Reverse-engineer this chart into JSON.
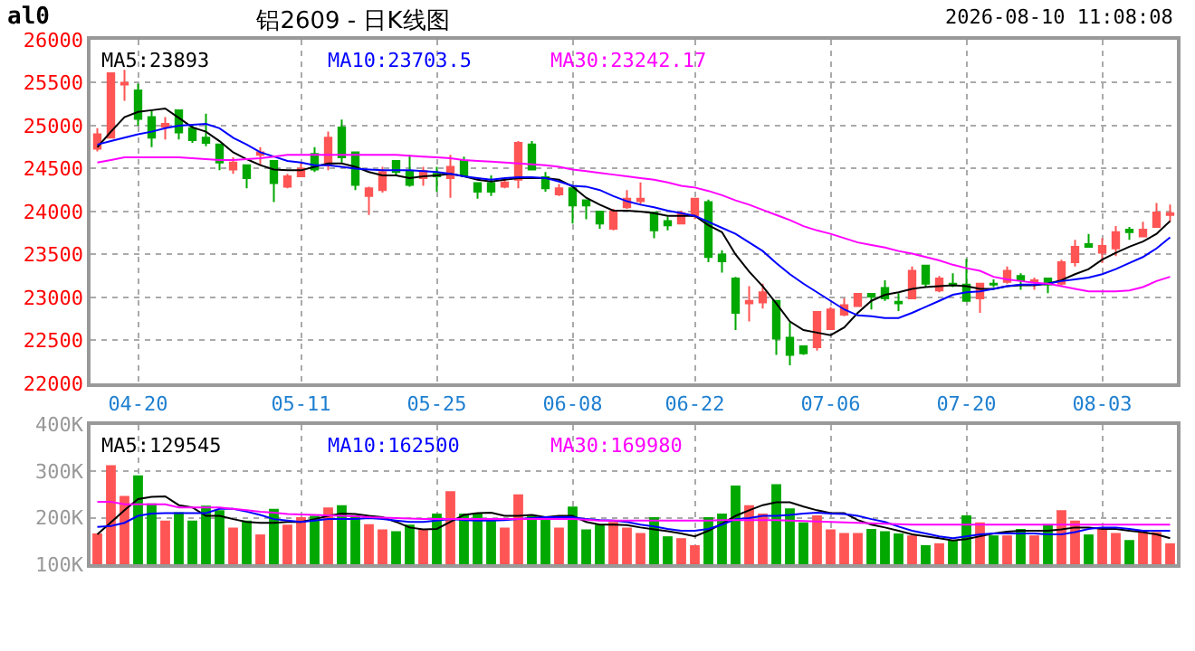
{
  "chart_data": [
    {
      "type": "candlestick",
      "title": "铝2609 - 日K线图",
      "annotations": [
        "al0",
        "2026-08-10 11:08:08"
      ],
      "categories": [
        null,
        null,
        null,
        "04-20",
        null,
        null,
        null,
        null,
        null,
        null,
        null,
        null,
        null,
        null,
        null,
        "05-11",
        null,
        null,
        null,
        null,
        null,
        null,
        null,
        null,
        null,
        "05-25",
        null,
        null,
        null,
        null,
        null,
        null,
        null,
        null,
        null,
        "06-08",
        null,
        null,
        null,
        null,
        null,
        null,
        null,
        null,
        "06-22",
        null,
        null,
        null,
        null,
        null,
        null,
        null,
        null,
        null,
        "07-06",
        null,
        null,
        null,
        null,
        null,
        null,
        null,
        null,
        null,
        "07-20",
        null,
        null,
        null,
        null,
        null,
        null,
        null,
        null,
        null,
        "08-03",
        null,
        null,
        null,
        null,
        null
      ],
      "ohlc": [
        [
          24730,
          24970,
          24700,
          24900
        ],
        [
          24860,
          25620,
          24850,
          25610
        ],
        [
          25480,
          25650,
          25290,
          25500
        ],
        [
          25410,
          25490,
          25000,
          25080
        ],
        [
          25100,
          25180,
          24750,
          24860
        ],
        [
          24990,
          25100,
          24840,
          25020
        ],
        [
          25180,
          25180,
          24840,
          24920
        ],
        [
          24970,
          25000,
          24800,
          24830
        ],
        [
          24860,
          25140,
          24760,
          24800
        ],
        [
          24780,
          24780,
          24480,
          24570
        ],
        [
          24490,
          24630,
          24440,
          24570
        ],
        [
          24540,
          24540,
          24270,
          24390
        ],
        [
          24660,
          24750,
          24540,
          24690
        ],
        [
          24590,
          24590,
          24110,
          24330
        ],
        [
          24290,
          24440,
          24270,
          24410
        ],
        [
          24410,
          24570,
          24400,
          24500
        ],
        [
          24670,
          24750,
          24460,
          24490
        ],
        [
          24540,
          24930,
          24480,
          24860
        ],
        [
          24980,
          25070,
          24570,
          24630
        ],
        [
          24690,
          24690,
          24250,
          24310
        ],
        [
          24180,
          24290,
          23960,
          24270
        ],
        [
          24250,
          24520,
          24220,
          24460
        ],
        [
          24590,
          24590,
          24410,
          24460
        ],
        [
          24470,
          24660,
          24290,
          24310
        ],
        [
          24390,
          24520,
          24300,
          24470
        ],
        [
          24440,
          24520,
          24230,
          24410
        ],
        [
          24390,
          24660,
          24160,
          24520
        ],
        [
          24590,
          24640,
          24400,
          24420
        ],
        [
          24330,
          24330,
          24150,
          24230
        ],
        [
          24330,
          24420,
          24180,
          24230
        ],
        [
          24290,
          24390,
          24270,
          24340
        ],
        [
          24370,
          24820,
          24270,
          24800
        ],
        [
          24780,
          24820,
          24480,
          24490
        ],
        [
          24400,
          24460,
          24230,
          24270
        ],
        [
          24200,
          24320,
          24180,
          24270
        ],
        [
          24270,
          24270,
          23860,
          24070
        ],
        [
          24130,
          24130,
          23910,
          24070
        ],
        [
          24000,
          24000,
          23800,
          23860
        ],
        [
          23800,
          24030,
          23780,
          24000
        ],
        [
          24050,
          24250,
          24030,
          24150
        ],
        [
          24120,
          24340,
          24080,
          24150
        ],
        [
          23990,
          23990,
          23690,
          23780
        ],
        [
          23890,
          23940,
          23780,
          23840
        ],
        [
          23860,
          24010,
          23860,
          23980
        ],
        [
          23950,
          24160,
          23910,
          24150
        ],
        [
          24110,
          24140,
          23410,
          23470
        ],
        [
          23500,
          23550,
          23290,
          23420
        ],
        [
          23220,
          23240,
          22620,
          22820
        ],
        [
          22930,
          23130,
          22720,
          22960
        ],
        [
          22940,
          23160,
          22870,
          23060
        ],
        [
          22960,
          22960,
          22330,
          22520
        ],
        [
          22530,
          22710,
          22210,
          22330
        ],
        [
          22430,
          22430,
          22330,
          22350
        ],
        [
          22420,
          22840,
          22380,
          22830
        ],
        [
          22630,
          22890,
          22620,
          22860
        ],
        [
          22800,
          22990,
          22780,
          22910
        ],
        [
          22900,
          23040,
          22900,
          23040
        ],
        [
          23040,
          23040,
          22860,
          23010
        ],
        [
          23110,
          23200,
          22960,
          22990
        ],
        [
          22950,
          23050,
          22840,
          22930
        ],
        [
          22990,
          23360,
          22990,
          23310
        ],
        [
          23370,
          23370,
          23120,
          23160
        ],
        [
          23080,
          23250,
          23060,
          23220
        ],
        [
          23160,
          23280,
          23120,
          23140
        ],
        [
          23150,
          23450,
          22960,
          22960
        ],
        [
          22990,
          23160,
          22820,
          23160
        ],
        [
          23160,
          23210,
          23120,
          23150
        ],
        [
          23180,
          23360,
          23160,
          23310
        ],
        [
          23250,
          23280,
          23090,
          23200
        ],
        [
          23180,
          23230,
          23090,
          23200
        ],
        [
          23220,
          23220,
          23050,
          23150
        ],
        [
          23160,
          23440,
          23140,
          23410
        ],
        [
          23410,
          23670,
          23360,
          23590
        ],
        [
          23620,
          23740,
          23590,
          23590
        ],
        [
          23520,
          23690,
          23400,
          23600
        ],
        [
          23570,
          23830,
          23480,
          23760
        ],
        [
          23790,
          23820,
          23670,
          23760
        ],
        [
          23710,
          23880,
          23710,
          23790
        ],
        [
          23820,
          24100,
          23810,
          23990
        ],
        [
          23960,
          24080,
          23880,
          23980
        ]
      ],
      "colors": [
        "#ff5555",
        "#ff5555",
        "#ff5555",
        "#00a800",
        "#00a800",
        "#ff5555",
        "#00a800",
        "#00a800",
        "#00a800",
        "#00a800",
        "#ff5555",
        "#00a800",
        "#ff5555",
        "#00a800",
        "#ff5555",
        "#ff5555",
        "#00a800",
        "#ff5555",
        "#00a800",
        "#00a800",
        "#ff5555",
        "#ff5555",
        "#00a800",
        "#00a800",
        "#ff5555",
        "#00a800",
        "#ff5555",
        "#00a800",
        "#00a800",
        "#00a800",
        "#ff5555",
        "#ff5555",
        "#00a800",
        "#00a800",
        "#ff5555",
        "#00a800",
        "#00a800",
        "#00a800",
        "#ff5555",
        "#ff5555",
        "#ff5555",
        "#00a800",
        "#00a800",
        "#ff5555",
        "#ff5555",
        "#00a800",
        "#00a800",
        "#00a800",
        "#ff5555",
        "#ff5555",
        "#00a800",
        "#00a800",
        "#00a800",
        "#ff5555",
        "#ff5555",
        "#ff5555",
        "#ff5555",
        "#00a800",
        "#00a800",
        "#00a800",
        "#ff5555",
        "#00a800",
        "#ff5555",
        "#00a800",
        "#00a800",
        "#ff5555",
        "#00a800",
        "#ff5555",
        "#00a800",
        "#ff5555",
        "#00a800",
        "#ff5555",
        "#ff5555",
        "#00a800",
        "#ff5555",
        "#ff5555",
        "#00a800",
        "#ff5555",
        "#ff5555",
        "#ff5555"
      ],
      "series": [
        {
          "name": "MA5:23893",
          "type": "line",
          "color": "#000000",
          "values": [
            24750,
            24930,
            25100,
            25160,
            25180,
            25200,
            25090,
            24980,
            24930,
            24820,
            24690,
            24610,
            24540,
            24490,
            24480,
            24480,
            24520,
            24560,
            24560,
            24520,
            24460,
            24420,
            24420,
            24390,
            24410,
            24420,
            24440,
            24410,
            24370,
            24350,
            24370,
            24390,
            24390,
            24390,
            24370,
            24290,
            24160,
            24080,
            24010,
            24010,
            24000,
            23980,
            23950,
            23950,
            23950,
            23840,
            23760,
            23500,
            23300,
            23130,
            22930,
            22720,
            22620,
            22590,
            22560,
            22650,
            22820,
            22960,
            23030,
            23060,
            23100,
            23120,
            23130,
            23140,
            23130,
            23100,
            23100,
            23130,
            23140,
            23140,
            23160,
            23200,
            23270,
            23330,
            23440,
            23520,
            23590,
            23650,
            23740,
            23890
          ]
        },
        {
          "name": "MA10:23703.5",
          "type": "line",
          "color": "#0000ff",
          "values": [
            24780,
            24820,
            24860,
            24900,
            24930,
            24970,
            25000,
            25010,
            25020,
            24970,
            24860,
            24780,
            24690,
            24640,
            24590,
            24570,
            24540,
            24540,
            24520,
            24500,
            24490,
            24480,
            24480,
            24480,
            24470,
            24460,
            24440,
            24410,
            24390,
            24370,
            24390,
            24400,
            24400,
            24390,
            24350,
            24300,
            24290,
            24250,
            24180,
            24120,
            24080,
            24050,
            24010,
            23980,
            23950,
            23880,
            23810,
            23740,
            23640,
            23540,
            23400,
            23270,
            23160,
            23060,
            22960,
            22860,
            22790,
            22780,
            22760,
            22760,
            22820,
            22890,
            22960,
            23030,
            23060,
            23070,
            23100,
            23130,
            23150,
            23150,
            23160,
            23190,
            23210,
            23230,
            23270,
            23330,
            23400,
            23470,
            23570,
            23700
          ]
        },
        {
          "name": "MA30:23242.17",
          "type": "line",
          "color": "#ff00ff",
          "values": [
            24570,
            24600,
            24630,
            24630,
            24630,
            24630,
            24630,
            24620,
            24610,
            24600,
            24600,
            24610,
            24620,
            24640,
            24660,
            24660,
            24660,
            24660,
            24660,
            24660,
            24660,
            24660,
            24660,
            24650,
            24640,
            24630,
            24620,
            24600,
            24590,
            24580,
            24570,
            24560,
            24550,
            24540,
            24520,
            24490,
            24470,
            24450,
            24430,
            24410,
            24390,
            24370,
            24340,
            24300,
            24280,
            24240,
            24190,
            24130,
            24080,
            24020,
            23960,
            23900,
            23830,
            23780,
            23740,
            23690,
            23640,
            23610,
            23580,
            23540,
            23510,
            23470,
            23430,
            23380,
            23340,
            23310,
            23240,
            23210,
            23190,
            23170,
            23160,
            23130,
            23100,
            23070,
            23070,
            23070,
            23080,
            23120,
            23190,
            23240
          ]
        }
      ],
      "ylim": [
        22000,
        26000
      ],
      "yticks": [
        22000,
        22500,
        23000,
        23500,
        24000,
        24500,
        25000,
        25500,
        26000
      ],
      "grid": true
    },
    {
      "type": "bar",
      "tick_labels": "y",
      "categories": [
        null,
        null,
        null,
        null,
        null,
        null,
        null,
        null,
        null,
        null,
        null,
        null,
        null,
        null,
        null,
        null,
        null,
        null,
        null,
        null,
        null,
        null,
        null,
        null,
        null,
        null,
        null,
        null,
        null,
        null,
        null,
        null,
        null,
        null,
        null,
        null,
        null,
        null,
        null,
        null,
        null,
        null,
        null,
        null,
        null,
        null,
        null,
        null,
        null,
        null,
        null,
        null,
        null,
        null,
        null,
        null,
        null,
        null,
        null,
        null,
        null,
        null,
        null,
        null,
        null,
        null,
        null,
        null,
        null,
        null,
        null,
        null,
        null,
        null,
        null,
        null,
        null,
        null,
        null,
        null
      ],
      "series": [
        {
          "type": "bar",
          "colors": [
            "#ff5555",
            "#ff5555",
            "#ff5555",
            "#00a800",
            "#00a800",
            "#ff5555",
            "#00a800",
            "#00a800",
            "#00a800",
            "#00a800",
            "#ff5555",
            "#00a800",
            "#ff5555",
            "#00a800",
            "#ff5555",
            "#ff5555",
            "#00a800",
            "#ff5555",
            "#00a800",
            "#00a800",
            "#ff5555",
            "#ff5555",
            "#00a800",
            "#00a800",
            "#ff5555",
            "#00a800",
            "#ff5555",
            "#00a800",
            "#00a800",
            "#00a800",
            "#ff5555",
            "#ff5555",
            "#00a800",
            "#00a800",
            "#ff5555",
            "#00a800",
            "#00a800",
            "#00a800",
            "#ff5555",
            "#ff5555",
            "#ff5555",
            "#00a800",
            "#00a800",
            "#ff5555",
            "#ff5555",
            "#00a800",
            "#00a800",
            "#00a800",
            "#ff5555",
            "#ff5555",
            "#00a800",
            "#00a800",
            "#00a800",
            "#ff5555",
            "#ff5555",
            "#ff5555",
            "#ff5555",
            "#00a800",
            "#00a800",
            "#00a800",
            "#ff5555",
            "#00a800",
            "#ff5555",
            "#00a800",
            "#00a800",
            "#ff5555",
            "#00a800",
            "#ff5555",
            "#00a800",
            "#ff5555",
            "#00a800",
            "#ff5555",
            "#ff5555",
            "#00a800",
            "#ff5555",
            "#ff5555",
            "#00a800",
            "#ff5555",
            "#ff5555",
            "#ff5555"
          ],
          "values": [
            166,
            313,
            247,
            291,
            231,
            194,
            212,
            194,
            226,
            216,
            179,
            194,
            164,
            219,
            185,
            201,
            204,
            222,
            227,
            204,
            186,
            175,
            171,
            185,
            176,
            209,
            257,
            209,
            211,
            197,
            179,
            250,
            204,
            197,
            179,
            224,
            175,
            185,
            191,
            179,
            167,
            201,
            160,
            156,
            141,
            201,
            209,
            269,
            227,
            209,
            272,
            220,
            190,
            205,
            175,
            167,
            167,
            176,
            171,
            166,
            162,
            141,
            145,
            151,
            205,
            190,
            162,
            162,
            176,
            162,
            186,
            216,
            194,
            164,
            176,
            167,
            152,
            169,
            169,
            145
          ]
        },
        {
          "name": "MA5:129545",
          "type": "line",
          "color": "#000000",
          "values": [
            164,
            190,
            216,
            240,
            245,
            246,
            227,
            222,
            204,
            204,
            197,
            191,
            189,
            189,
            191,
            191,
            197,
            204,
            209,
            208,
            204,
            201,
            191,
            179,
            175,
            176,
            191,
            206,
            210,
            211,
            204,
            204,
            206,
            201,
            204,
            204,
            191,
            185,
            185,
            184,
            179,
            175,
            171,
            166,
            160,
            172,
            187,
            204,
            216,
            227,
            233,
            233,
            224,
            216,
            210,
            210,
            195,
            185,
            179,
            172,
            164,
            160,
            156,
            151,
            154,
            160,
            166,
            170,
            172,
            172,
            172,
            175,
            179,
            179,
            176,
            176,
            172,
            169,
            164,
            156
          ]
        },
        {
          "name": "MA10:162500",
          "type": "line",
          "color": "#0000ff",
          "values": [
            180,
            182,
            189,
            204,
            209,
            210,
            210,
            210,
            210,
            219,
            219,
            213,
            206,
            197,
            194,
            191,
            194,
            197,
            197,
            197,
            199,
            197,
            194,
            191,
            191,
            194,
            197,
            195,
            194,
            194,
            195,
            197,
            199,
            201,
            201,
            201,
            197,
            195,
            194,
            191,
            185,
            181,
            176,
            172,
            172,
            176,
            185,
            197,
            199,
            204,
            204,
            206,
            209,
            211,
            209,
            208,
            204,
            197,
            191,
            181,
            172,
            166,
            160,
            156,
            160,
            164,
            166,
            166,
            166,
            166,
            164,
            164,
            169,
            176,
            179,
            179,
            176,
            172,
            172,
            172
          ]
        },
        {
          "name": "MA30:169980",
          "type": "line",
          "color": "#ff00ff",
          "values": [
            234,
            234,
            229,
            229,
            229,
            229,
            222,
            222,
            222,
            222,
            219,
            216,
            213,
            211,
            208,
            207,
            206,
            205,
            204,
            203,
            201,
            200,
            199,
            198,
            197,
            197,
            197,
            197,
            197,
            197,
            197,
            197,
            197,
            197,
            197,
            197,
            196,
            194,
            194,
            194,
            194,
            194,
            194,
            194,
            194,
            194,
            195,
            195,
            195,
            195,
            195,
            194,
            193,
            192,
            191,
            190,
            189,
            188,
            187,
            186,
            185,
            185,
            185,
            185,
            185,
            185,
            185,
            185,
            185,
            185,
            185,
            185,
            185,
            185,
            185,
            185,
            185,
            185,
            185,
            185
          ]
        }
      ],
      "ylim": [
        100,
        400
      ],
      "yticks": [
        {
          "value": 100,
          "label": "100K"
        },
        {
          "value": 200,
          "label": "200K"
        },
        {
          "value": 300,
          "label": "300K"
        },
        {
          "value": 400,
          "label": "400K"
        }
      ],
      "grid": true
    }
  ]
}
